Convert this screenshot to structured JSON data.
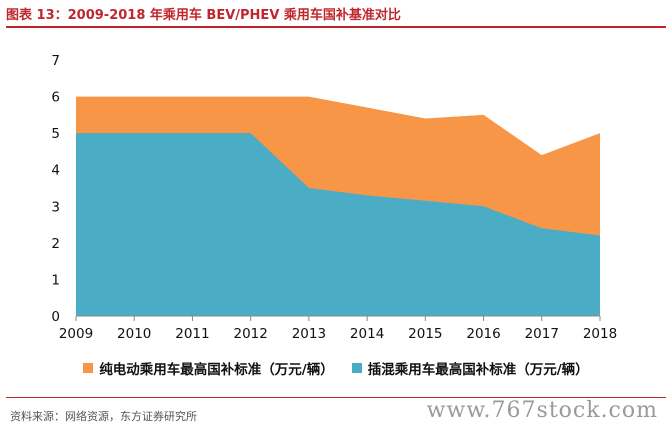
{
  "header": {
    "title": "图表 13：2009-2018 年乘用车 BEV/PHEV 乘用车国补基准对比"
  },
  "chart_data": {
    "type": "area",
    "title": "",
    "xlabel": "",
    "ylabel": "",
    "x": [
      "2009",
      "2010",
      "2011",
      "2012",
      "2013",
      "2014",
      "2015",
      "2016",
      "2017",
      "2018"
    ],
    "ylim": [
      0,
      7
    ],
    "yticks": [
      0,
      1,
      2,
      3,
      4,
      5,
      6,
      7
    ],
    "grid": false,
    "legend_position": "bottom",
    "series": [
      {
        "name": "纯电动乘用车最高国补标准（万元/辆）",
        "color": "#f79646",
        "values": [
          6,
          6,
          6,
          6,
          6,
          5.7,
          5.4,
          5.5,
          4.4,
          5.0
        ]
      },
      {
        "name": "插混乘用车最高国补标准（万元/辆）",
        "color": "#4bacc6",
        "values": [
          5,
          5,
          5,
          5,
          3.5,
          3.3,
          3.15,
          3.0,
          2.4,
          2.2
        ]
      }
    ]
  },
  "footer": {
    "source": "资料来源：网络资源，东方证券研究所",
    "watermark": "www.767stock.com"
  }
}
